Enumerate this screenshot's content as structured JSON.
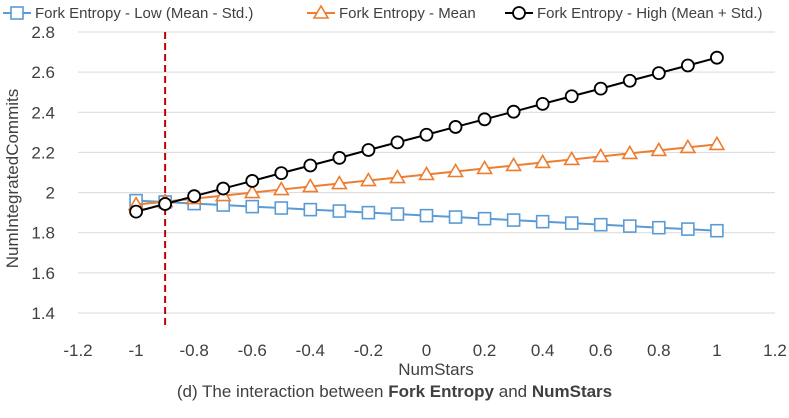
{
  "chart_data": {
    "type": "line",
    "title": "",
    "xlabel": "NumStars",
    "ylabel": "NumIntegratedCommits",
    "xlim": [
      -1.2,
      1.2
    ],
    "ylim": [
      1.4,
      2.8
    ],
    "x_ticks": [
      -1.2,
      -1,
      -0.8,
      -0.6,
      -0.4,
      -0.2,
      0,
      0.2,
      0.4,
      0.6,
      0.8,
      1,
      1.2
    ],
    "x_tick_labels": [
      "-1.2",
      "-1",
      "-0.8",
      "-0.6",
      "-0.4",
      "-0.2",
      "0",
      "0.2",
      "0.4",
      "0.6",
      "0.8",
      "1",
      "1.2"
    ],
    "y_ticks": [
      1.4,
      1.6,
      1.8,
      2,
      2.2,
      2.4,
      2.6,
      2.8
    ],
    "y_tick_labels": [
      "1.4",
      "1.6",
      "1.8",
      "2",
      "2.2",
      "2.4",
      "2.6",
      "2.8"
    ],
    "grid": "horizontal",
    "legend_position": "top",
    "reference_line": {
      "x": -0.9,
      "color": "#c00000",
      "style": "dashed"
    },
    "x": [
      -1,
      -0.9,
      -0.8,
      -0.7,
      -0.6,
      -0.5,
      -0.4,
      -0.3,
      -0.2,
      -0.1,
      0,
      0.1,
      0.2,
      0.3,
      0.4,
      0.5,
      0.6,
      0.7,
      0.8,
      0.9,
      1
    ],
    "series": [
      {
        "name": "Fork Entropy - Low (Mean - Std.)",
        "marker": "square",
        "color": "#5b9bd5",
        "values": [
          1.96,
          1.953,
          1.945,
          1.938,
          1.93,
          1.923,
          1.915,
          1.908,
          1.9,
          1.893,
          1.885,
          1.878,
          1.87,
          1.863,
          1.855,
          1.848,
          1.84,
          1.833,
          1.825,
          1.818,
          1.81
        ]
      },
      {
        "name": "Fork Entropy - Mean",
        "marker": "triangle",
        "color": "#ed7d31",
        "values": [
          1.94,
          1.955,
          1.97,
          1.985,
          2.0,
          2.015,
          2.03,
          2.045,
          2.06,
          2.075,
          2.09,
          2.105,
          2.12,
          2.135,
          2.15,
          2.165,
          2.18,
          2.195,
          2.21,
          2.225,
          2.24
        ]
      },
      {
        "name": "Fork Entropy - High (Mean + Std.)",
        "marker": "circle",
        "color": "#000000",
        "values": [
          1.905,
          1.943,
          1.982,
          2.02,
          2.058,
          2.097,
          2.135,
          2.173,
          2.212,
          2.25,
          2.288,
          2.327,
          2.365,
          2.403,
          2.442,
          2.48,
          2.518,
          2.557,
          2.595,
          2.633,
          2.672
        ]
      }
    ]
  },
  "caption": {
    "prefix": "(d) The interaction between ",
    "bold1": "Fork Entropy",
    "middle": " and ",
    "bold2": "NumStars"
  }
}
